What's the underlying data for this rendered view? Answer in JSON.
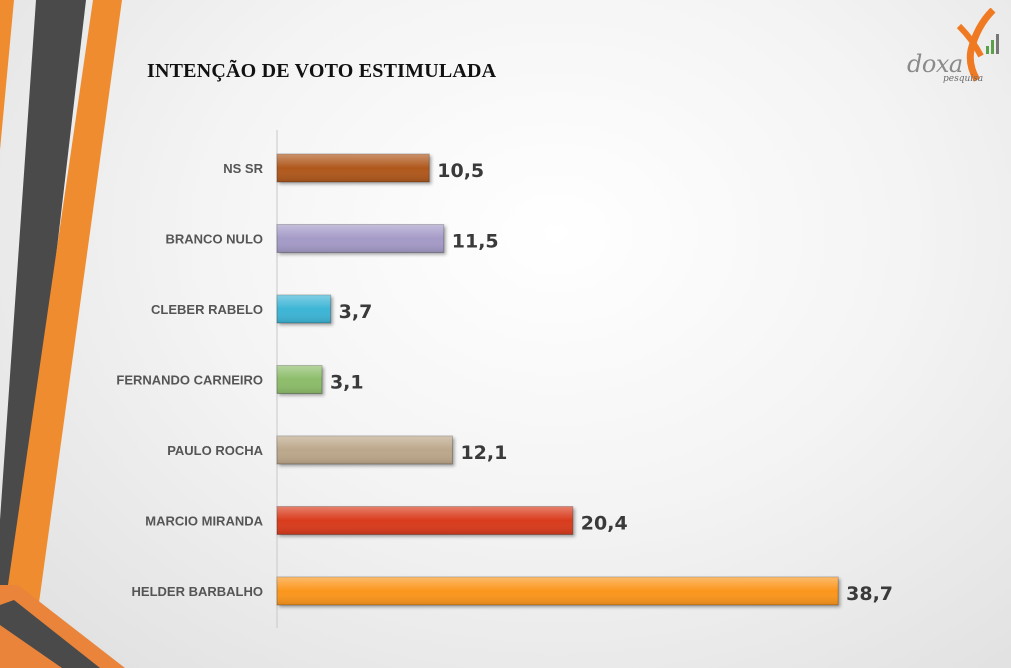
{
  "title": "INTENÇÃO DE VOTO ESTIMULADA",
  "logo": {
    "text": "doxa",
    "sub": "pesquisa"
  },
  "chart_data": {
    "type": "bar",
    "orientation": "horizontal",
    "title": "INTENÇÃO DE VOTO ESTIMULADA",
    "categories": [
      "NS SR",
      "BRANCO NULO",
      "CLEBER RABELO",
      "FERNANDO CARNEIRO",
      "PAULO ROCHA",
      "MARCIO MIRANDA",
      "HELDER BARBALHO"
    ],
    "values": [
      10.5,
      11.5,
      3.7,
      3.1,
      12.1,
      20.4,
      38.7
    ],
    "value_labels": [
      "10,5",
      "11,5",
      "3,7",
      "3,1",
      "12,1",
      "20,4",
      "38,7"
    ],
    "colors": [
      "#b0581e",
      "#a59bc8",
      "#3db5d6",
      "#8dbd6b",
      "#bca78a",
      "#d93a1f",
      "#fb961c"
    ],
    "xlabel": "",
    "ylabel": "",
    "xlim": [
      0,
      40
    ],
    "grid": false,
    "legend": "none"
  }
}
